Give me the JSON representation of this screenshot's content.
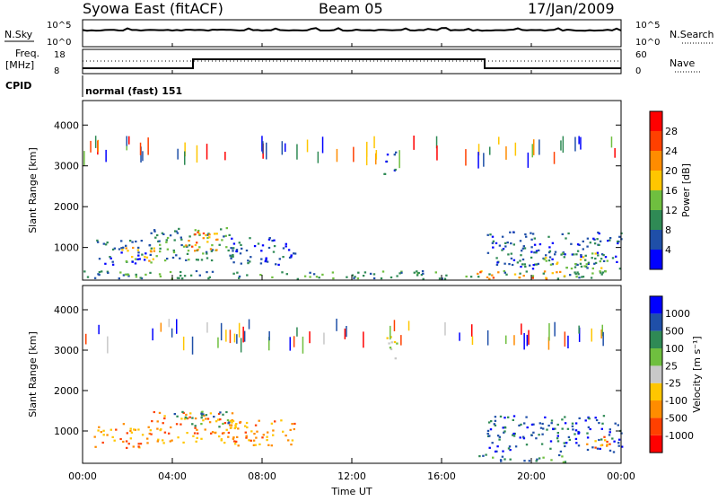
{
  "header": {
    "title": "Syowa East (fitACF)",
    "beam": "Beam 05",
    "date": "17/Jan/2009"
  },
  "noise_panel": {
    "left_label": "N.Sky",
    "right_label": "N.Search",
    "left_ticks": [
      "10^5",
      "10^0"
    ],
    "right_ticks": [
      "10^5",
      "10^0"
    ]
  },
  "freq_panel": {
    "left_label_line1": "Freq.",
    "left_label_line2": "[MHz]",
    "right_label": "Nave",
    "left_ticks": [
      "18",
      "8"
    ],
    "right_ticks": [
      "60",
      "0"
    ]
  },
  "cpid_panel": {
    "label": "CPID",
    "value": "normal (fast) 151"
  },
  "x_axis": {
    "label": "Time UT",
    "ticks": [
      "00:00",
      "04:00",
      "08:00",
      "12:00",
      "16:00",
      "20:00",
      "00:00"
    ]
  },
  "colors": {
    "power_scale": [
      "#0000ff",
      "#1f4fa8",
      "#2f8a55",
      "#6fbf3f",
      "#ffc600",
      "#ff8c00",
      "#ff4000",
      "#ff0000"
    ],
    "velocity_scale": [
      "#ff0000",
      "#ff4000",
      "#ff8c00",
      "#ffc600",
      "#c8c8c8",
      "#6fbf3f",
      "#2f8a55",
      "#1f4fa8",
      "#0000ff"
    ]
  },
  "chart_data": [
    {
      "type": "heatmap",
      "panel": "power",
      "ylabel": "Slant Range [km]",
      "yticks": [
        "1000",
        "2000",
        "3000",
        "4000"
      ],
      "ylim": [
        200,
        4600
      ],
      "xlim": [
        0,
        24
      ],
      "colorbar": {
        "label": "Power [dB]",
        "ticks": [
          "4",
          "8",
          "12",
          "16",
          "20",
          "24",
          "28"
        ]
      },
      "regions": [
        {
          "t0": 0.5,
          "t1": 3.0,
          "r0": 600,
          "r1": 1200,
          "level": 1
        },
        {
          "t0": 3.0,
          "t1": 6.8,
          "r0": 700,
          "r1": 1500,
          "level": 2
        },
        {
          "t0": 4.2,
          "t1": 6.0,
          "r0": 900,
          "r1": 1400,
          "level": 5
        },
        {
          "t0": 1.5,
          "t1": 3.2,
          "r0": 650,
          "r1": 1050,
          "level": 4
        },
        {
          "t0": 6.5,
          "t1": 9.5,
          "r0": 600,
          "r1": 1300,
          "level": 1
        },
        {
          "t0": 0.0,
          "t1": 24.0,
          "r0": 250,
          "r1": 450,
          "level": 2
        },
        {
          "t0": 13.4,
          "t1": 14.0,
          "r0": 2800,
          "r1": 3400,
          "level": 1
        },
        {
          "t0": 17.5,
          "t1": 21.5,
          "r0": 250,
          "r1": 450,
          "level": 5
        },
        {
          "t0": 18.0,
          "t1": 24.0,
          "r0": 500,
          "r1": 1400,
          "level": 1
        },
        {
          "t0": 20.5,
          "t1": 23.5,
          "r0": 500,
          "r1": 900,
          "level": 3
        }
      ]
    },
    {
      "type": "heatmap",
      "panel": "velocity",
      "ylabel": "Slant Range [km]",
      "yticks": [
        "1000",
        "2000",
        "3000",
        "4000"
      ],
      "ylim": [
        200,
        4600
      ],
      "xlim": [
        0,
        24
      ],
      "colorbar": {
        "label": "Velocity [m s⁻¹]",
        "ticks": [
          "1000",
          "500",
          "100",
          "25",
          "-25",
          "-100",
          "-500",
          "-1000"
        ]
      },
      "regions": [
        {
          "t0": 0.5,
          "t1": 3.0,
          "r0": 600,
          "r1": 1200,
          "level": 2
        },
        {
          "t0": 3.0,
          "t1": 6.8,
          "r0": 700,
          "r1": 1500,
          "level": 2
        },
        {
          "t0": 4.0,
          "t1": 6.5,
          "r0": 1100,
          "r1": 1500,
          "level": 6
        },
        {
          "t0": 6.5,
          "t1": 9.5,
          "r0": 600,
          "r1": 1300,
          "level": 2
        },
        {
          "t0": 13.4,
          "t1": 14.0,
          "r0": 2800,
          "r1": 3400,
          "level": 4
        },
        {
          "t0": 17.5,
          "t1": 21.5,
          "r0": 250,
          "r1": 450,
          "level": 6
        },
        {
          "t0": 18.0,
          "t1": 24.0,
          "r0": 500,
          "r1": 1400,
          "level": 7
        },
        {
          "t0": 22.0,
          "t1": 23.5,
          "r0": 600,
          "r1": 900,
          "level": 2
        }
      ]
    }
  ]
}
